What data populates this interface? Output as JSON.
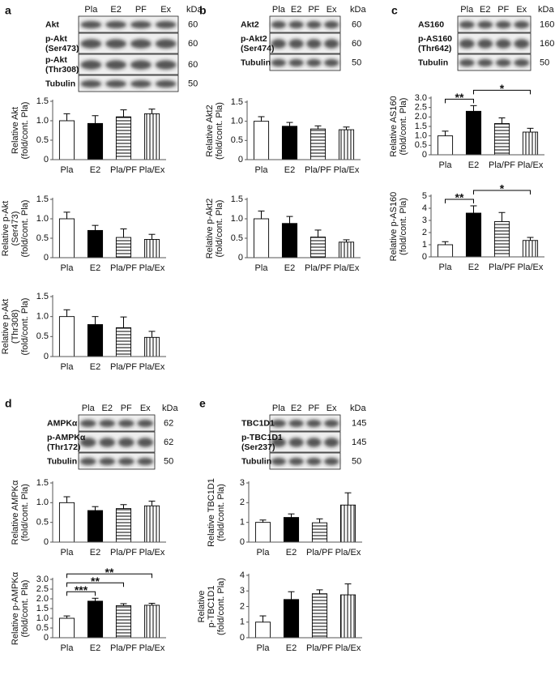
{
  "blots": [
    {
      "letter": "a",
      "columns": [
        "Pla",
        "E2",
        "PF",
        "Ex"
      ],
      "unit": "kDa",
      "rows": [
        {
          "label": [
            "Akt"
          ],
          "kda": 60
        },
        {
          "label": [
            "p-Akt",
            "(Ser473)"
          ],
          "kda": 60
        },
        {
          "label": [
            "p-Akt",
            "(Thr308)"
          ],
          "kda": 60
        },
        {
          "label": [
            "Tubulin"
          ],
          "kda": 50
        }
      ]
    },
    {
      "letter": "b",
      "columns": [
        "Pla",
        "E2",
        "PF",
        "Ex"
      ],
      "unit": "kDa",
      "rows": [
        {
          "label": [
            "Akt2"
          ],
          "kda": 60
        },
        {
          "label": [
            "p-Akt2",
            "(Ser474)"
          ],
          "kda": 60
        },
        {
          "label": [
            "Tubulin"
          ],
          "kda": 50
        }
      ]
    },
    {
      "letter": "c",
      "columns": [
        "Pla",
        "E2",
        "PF",
        "Ex"
      ],
      "unit": "kDa",
      "rows": [
        {
          "label": [
            "AS160"
          ],
          "kda": 160
        },
        {
          "label": [
            "p-AS160",
            "(Thr642)"
          ],
          "kda": 160
        },
        {
          "label": [
            "Tubulin"
          ],
          "kda": 50
        }
      ]
    },
    {
      "letter": "d",
      "columns": [
        "Pla",
        "E2",
        "PF",
        "Ex"
      ],
      "unit": "kDa",
      "rows": [
        {
          "label": [
            "AMPKα"
          ],
          "kda": 62
        },
        {
          "label": [
            "p-AMPKα",
            "(Thr172)"
          ],
          "kda": 62
        },
        {
          "label": [
            "Tubulin"
          ],
          "kda": 50
        }
      ]
    },
    {
      "letter": "e",
      "columns": [
        "Pla",
        "E2",
        "PF",
        "Ex"
      ],
      "unit": "kDa",
      "rows": [
        {
          "label": [
            "TBC1D1"
          ],
          "kda": 145
        },
        {
          "label": [
            "p-TBC1D1",
            "(Ser237)"
          ],
          "kda": 145
        },
        {
          "label": [
            "Tubulin"
          ],
          "kda": 50
        }
      ]
    }
  ],
  "chart_data": [
    {
      "type": "bar",
      "ylabel": [
        "Relative Akt",
        "(fold/cont. Pla)"
      ],
      "categories": [
        "Pla",
        "E2",
        "Pla/PF",
        "Pla/Ex"
      ],
      "values": [
        1.0,
        0.93,
        1.1,
        1.18
      ],
      "errors": [
        0.18,
        0.2,
        0.18,
        0.12
      ],
      "fills": [
        "white",
        "black",
        "hstripe",
        "vstripe"
      ],
      "ylim": [
        0,
        1.5
      ],
      "yticks": [
        0,
        0.5,
        {
          "value": 1,
          "label": "1.0"
        },
        1.5
      ]
    },
    {
      "type": "bar",
      "ylabel": [
        "Relative p-Akt",
        "(Ser473)",
        "(fold/cont. Pla)"
      ],
      "categories": [
        "Pla",
        "E2",
        "Pla/PF",
        "Pla/Ex"
      ],
      "values": [
        1.0,
        0.7,
        0.52,
        0.47
      ],
      "errors": [
        0.17,
        0.13,
        0.22,
        0.13
      ],
      "fills": [
        "white",
        "black",
        "hstripe",
        "vstripe"
      ],
      "ylim": [
        0,
        1.5
      ],
      "yticks": [
        0,
        0.5,
        {
          "value": 1,
          "label": "1.0"
        },
        1.5
      ]
    },
    {
      "type": "bar",
      "ylabel": [
        "Relative p-Akt",
        "(Thr308)",
        "(fold/cont. Pla)"
      ],
      "categories": [
        "Pla",
        "E2",
        "Pla/PF",
        "Pla/Ex"
      ],
      "values": [
        1.0,
        0.8,
        0.72,
        0.48
      ],
      "errors": [
        0.17,
        0.2,
        0.27,
        0.15
      ],
      "fills": [
        "white",
        "black",
        "hstripe",
        "vstripe"
      ],
      "ylim": [
        0,
        1.5
      ],
      "yticks": [
        0,
        0.5,
        {
          "value": 1,
          "label": "1.0"
        },
        1.5
      ]
    },
    {
      "type": "bar",
      "ylabel": [
        "Relative Akt2",
        "(fold/cont. Pla)"
      ],
      "categories": [
        "Pla",
        "E2",
        "Pla/PF",
        "Pla/Ex"
      ],
      "values": [
        1.0,
        0.87,
        0.8,
        0.78
      ],
      "errors": [
        0.12,
        0.1,
        0.08,
        0.07
      ],
      "fills": [
        "white",
        "black",
        "hstripe",
        "vstripe"
      ],
      "ylim": [
        0,
        1.5
      ],
      "yticks": [
        0,
        0.5,
        {
          "value": 1,
          "label": "1.0"
        },
        1.5
      ]
    },
    {
      "type": "bar",
      "ylabel": [
        "Relative p-Akt2",
        "(fold/cont. Pla)"
      ],
      "categories": [
        "Pla",
        "E2",
        "Pla/PF",
        "Pla/Ex"
      ],
      "values": [
        1.0,
        0.88,
        0.53,
        0.4
      ],
      "errors": [
        0.2,
        0.18,
        0.18,
        0.06
      ],
      "fills": [
        "white",
        "black",
        "hstripe",
        "vstripe"
      ],
      "ylim": [
        0,
        1.5
      ],
      "yticks": [
        0,
        0.5,
        {
          "value": 1,
          "label": "1.0"
        },
        1.5
      ]
    },
    {
      "type": "bar",
      "ylabel": [
        "Relative AS160",
        "(fold/cont. Pla)"
      ],
      "categories": [
        "Pla",
        "E2",
        "Pla/PF",
        "Pla/Ex"
      ],
      "values": [
        1.0,
        2.3,
        1.65,
        1.2
      ],
      "errors": [
        0.25,
        0.3,
        0.3,
        0.2
      ],
      "fills": [
        "white",
        "black",
        "hstripe",
        "vstripe"
      ],
      "ylim": [
        0,
        3
      ],
      "yticks": [
        0,
        0.5,
        {
          "value": 1,
          "label": "1.0"
        },
        1.5,
        {
          "value": 2,
          "label": "2.0"
        },
        2.5,
        {
          "value": 3,
          "label": "3.0"
        }
      ],
      "significance": [
        {
          "from": 0,
          "to": 1,
          "label": "**"
        },
        {
          "from": 1,
          "to": 3,
          "label": "*"
        }
      ]
    },
    {
      "type": "bar",
      "ylabel": [
        "Relative p-AS160",
        "(fold/cont. Pla)"
      ],
      "categories": [
        "Pla",
        "E2",
        "Pla/PF",
        "Pla/Ex"
      ],
      "values": [
        1.0,
        3.6,
        2.9,
        1.35
      ],
      "errors": [
        0.25,
        0.6,
        0.75,
        0.25
      ],
      "fills": [
        "white",
        "black",
        "hstripe",
        "vstripe"
      ],
      "ylim": [
        0,
        5
      ],
      "yticks": [
        0,
        1,
        2,
        3,
        4,
        5
      ],
      "significance": [
        {
          "from": 0,
          "to": 1,
          "label": "**"
        },
        {
          "from": 1,
          "to": 3,
          "label": "*"
        }
      ]
    },
    {
      "type": "bar",
      "ylabel": [
        "Relative AMPKα",
        "(fold/cont. Pla)"
      ],
      "categories": [
        "Pla",
        "E2",
        "Pla/PF",
        "Pla/Ex"
      ],
      "values": [
        1.0,
        0.8,
        0.85,
        0.92
      ],
      "errors": [
        0.15,
        0.1,
        0.1,
        0.12
      ],
      "fills": [
        "white",
        "black",
        "hstripe",
        "vstripe"
      ],
      "ylim": [
        0,
        1.5
      ],
      "yticks": [
        0,
        0.5,
        {
          "value": 1,
          "label": "1.0"
        },
        1.5
      ]
    },
    {
      "type": "bar",
      "ylabel": [
        "Relative p-AMPKα",
        "(fold/cont. Pla)"
      ],
      "categories": [
        "Pla",
        "E2",
        "Pla/PF",
        "Pla/Ex"
      ],
      "values": [
        1.0,
        1.88,
        1.65,
        1.67
      ],
      "errors": [
        0.12,
        0.15,
        0.1,
        0.1
      ],
      "fills": [
        "white",
        "black",
        "hstripe",
        "vstripe"
      ],
      "ylim": [
        0,
        3
      ],
      "yticks": [
        0,
        0.5,
        {
          "value": 1,
          "label": "1.0"
        },
        1.5,
        {
          "value": 2,
          "label": "2.0"
        },
        2.5,
        {
          "value": 3,
          "label": "3.0"
        }
      ],
      "significance": [
        {
          "from": 0,
          "to": 1,
          "label": "***"
        },
        {
          "from": 0,
          "to": 2,
          "label": "**"
        },
        {
          "from": 0,
          "to": 3,
          "label": "**"
        }
      ]
    },
    {
      "type": "bar",
      "ylabel": [
        "Relative TBC1D1",
        "(fold/cont. Pla)"
      ],
      "categories": [
        "Pla",
        "E2",
        "Pla/PF",
        "Pla/Ex"
      ],
      "values": [
        1.0,
        1.25,
        0.98,
        1.88
      ],
      "errors": [
        0.12,
        0.18,
        0.2,
        0.62
      ],
      "fills": [
        "white",
        "black",
        "hstripe",
        "vstripe"
      ],
      "ylim": [
        0,
        3
      ],
      "yticks": [
        0,
        1,
        2,
        3
      ]
    },
    {
      "type": "bar",
      "ylabel": [
        "Relative",
        "p-TBC1D1",
        "(fold/cont. Pla)"
      ],
      "categories": [
        "Pla",
        "E2",
        "Pla/PF",
        "Pla/Ex"
      ],
      "values": [
        1.0,
        2.45,
        2.82,
        2.75
      ],
      "errors": [
        0.4,
        0.5,
        0.25,
        0.7
      ],
      "fills": [
        "white",
        "black",
        "hstripe",
        "vstripe"
      ],
      "ylim": [
        0,
        4
      ],
      "yticks": [
        0,
        1,
        2,
        3,
        4
      ]
    }
  ]
}
